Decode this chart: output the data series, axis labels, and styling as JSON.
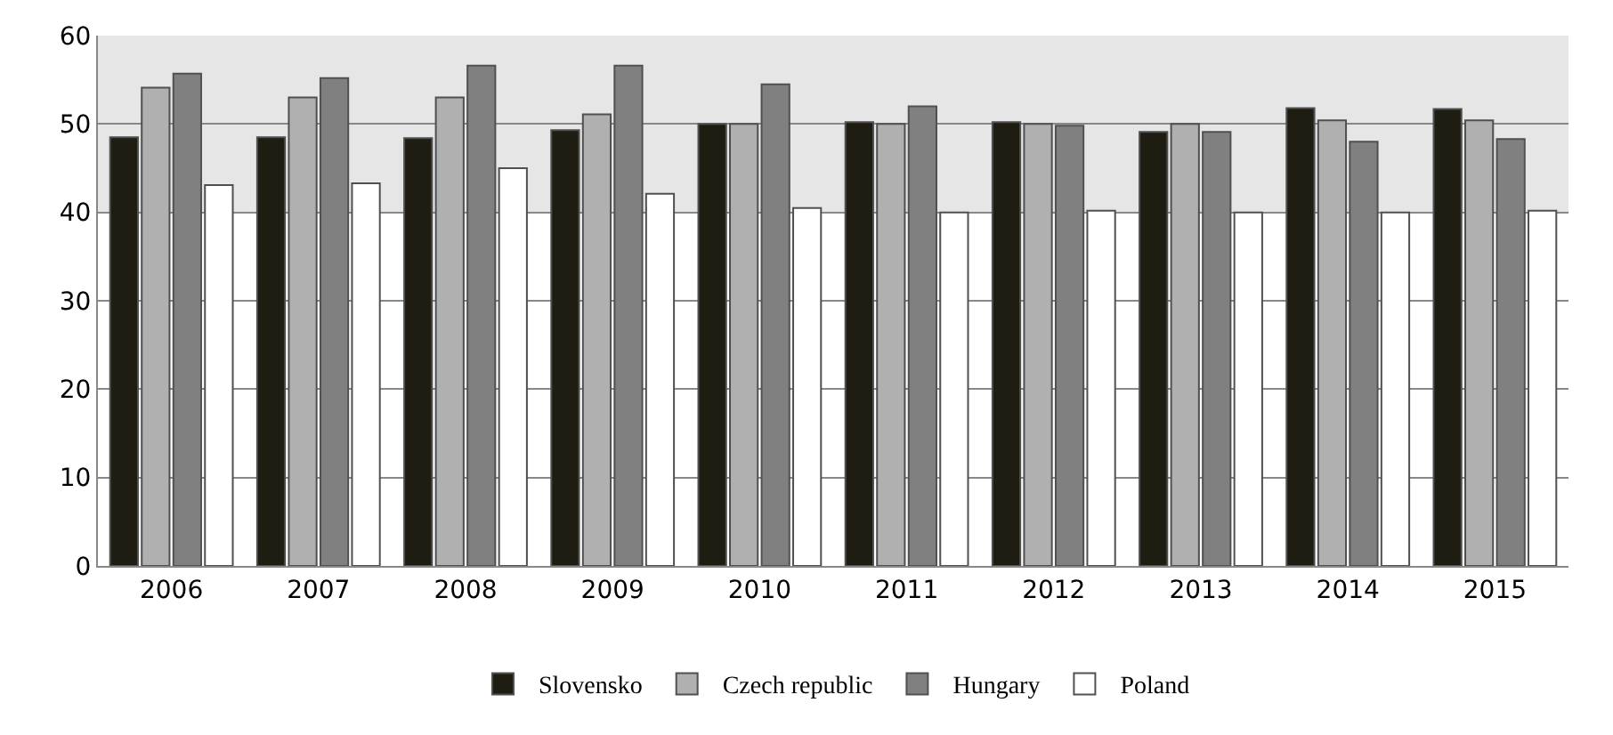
{
  "chart_data": {
    "type": "bar",
    "categories": [
      "2006",
      "2007",
      "2008",
      "2009",
      "2010",
      "2011",
      "2012",
      "2013",
      "2014",
      "2015"
    ],
    "series": [
      {
        "name": "Slovensko",
        "color": "#1f1c12",
        "values": [
          48.5,
          48.5,
          48.4,
          49.3,
          50.0,
          50.2,
          50.2,
          49.1,
          51.8,
          51.7
        ]
      },
      {
        "name": "Czech republic",
        "color": "#b0b0b0",
        "values": [
          54.1,
          53.0,
          53.0,
          51.1,
          50.0,
          50.0,
          50.0,
          50.0,
          50.4,
          50.4
        ]
      },
      {
        "name": "Hungary",
        "color": "#808080",
        "values": [
          55.7,
          55.2,
          56.6,
          56.6,
          54.5,
          52.0,
          49.8,
          49.1,
          48.0,
          48.3
        ]
      },
      {
        "name": "Poland",
        "color": "#ffffff",
        "values": [
          43.1,
          43.3,
          45.0,
          42.1,
          40.5,
          40.0,
          40.2,
          40.0,
          40.0,
          40.2
        ]
      }
    ],
    "ylim": [
      0,
      60
    ],
    "yticks": [
      0,
      10,
      20,
      30,
      40,
      50,
      60
    ],
    "bands": [
      {
        "axis": "y",
        "from": 40,
        "to": 60,
        "color": "#e6e6e6"
      }
    ],
    "grid": "y",
    "legend": "bottom"
  }
}
